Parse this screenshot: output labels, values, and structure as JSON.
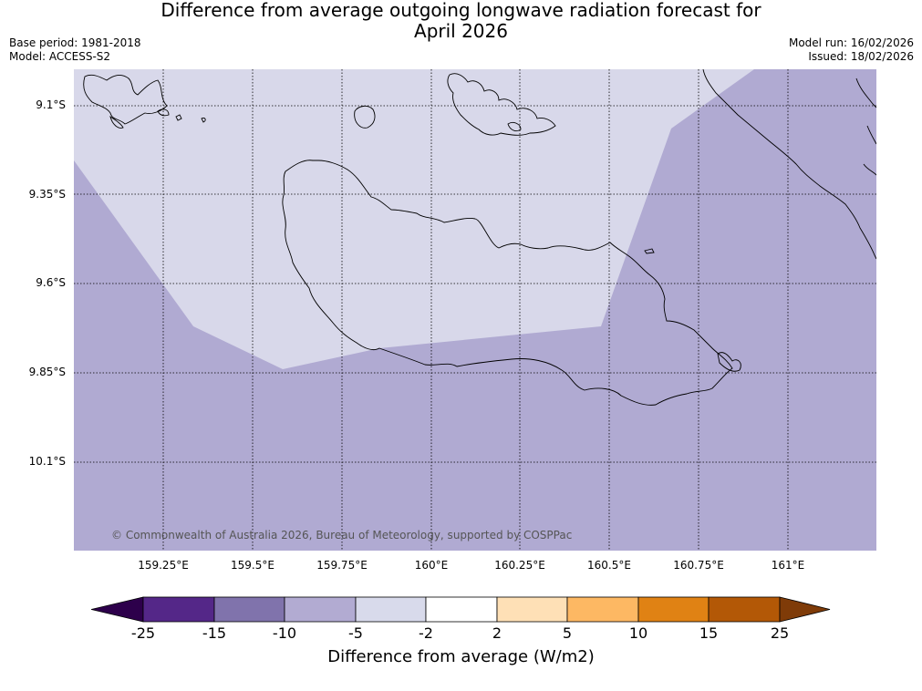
{
  "header": {
    "title_line1": "Difference from average outgoing longwave radiation forecast for",
    "title_line2": "April 2026",
    "base_period": "Base period: 1981-2018",
    "model": "Model: ACCESS-S2",
    "model_run": "Model run: 16/02/2026",
    "issued": "Issued: 18/02/2026"
  },
  "map": {
    "lat_labels": [
      "9.1°S",
      "9.35°S",
      "9.6°S",
      "9.85°S",
      "10.1°S"
    ],
    "lon_labels": [
      "159.25°E",
      "159.5°E",
      "159.75°E",
      "160°E",
      "160.25°E",
      "160.5°E",
      "160.75°E",
      "161°E"
    ],
    "copyright": "© Commonwealth of Australia 2026, Bureau of Meteorology, supported by COSPPac",
    "colors": {
      "band_minus10_to_minus5": "#b0aad2",
      "band_minus5_to_minus2": "#d8d8ea",
      "coast": "#000000"
    }
  },
  "colorbar": {
    "title": "Difference from average (W/m2)",
    "tick_labels": [
      "-25",
      "-15",
      "-10",
      "-5",
      "-2",
      "2",
      "5",
      "10",
      "15",
      "25"
    ],
    "colors": [
      "#2d004b",
      "#542788",
      "#8073ac",
      "#b2abd2",
      "#d8daeb",
      "#ffffff",
      "#fee0b6",
      "#fdb863",
      "#e08214",
      "#b35806",
      "#7f3b08"
    ]
  }
}
